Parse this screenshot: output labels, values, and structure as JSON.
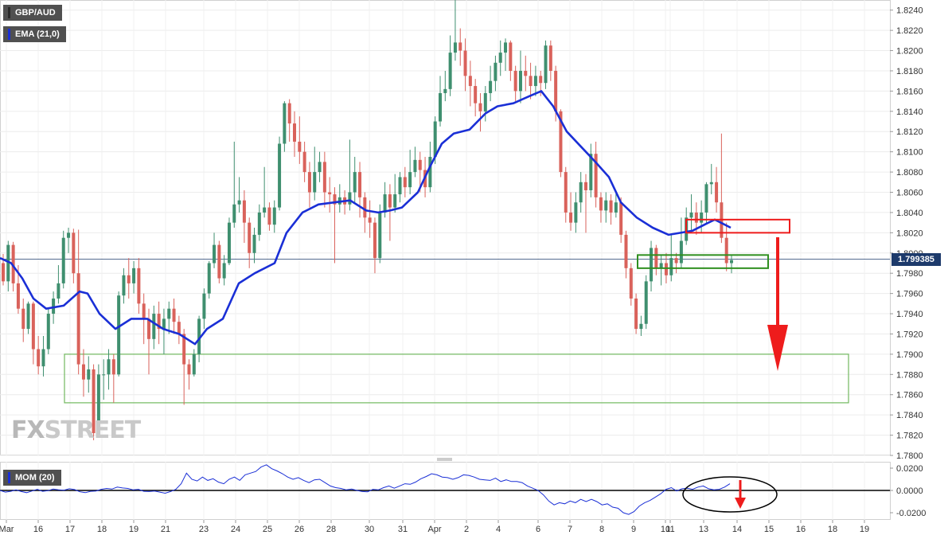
{
  "chart_data": [
    {
      "type": "candlestick",
      "title": "GBP/AUD",
      "indicator": "EMA (21,0)",
      "current_price": "1.799385",
      "ylim": [
        1.78,
        1.825
      ],
      "y_ticks": [
        "1.8240",
        "1.8220",
        "1.8200",
        "1.8180",
        "1.8160",
        "1.8140",
        "1.8120",
        "1.8100",
        "1.8080",
        "1.8060",
        "1.8040",
        "1.8020",
        "1.8000",
        "1.7980",
        "1.7960",
        "1.7940",
        "1.7920",
        "1.7900",
        "1.7880",
        "1.7860",
        "1.7840",
        "1.7820",
        "1.7800"
      ],
      "x_ticks": [
        "Mar",
        "16",
        "17",
        "18",
        "19",
        "21",
        "23",
        "24",
        "25",
        "26",
        "28",
        "30",
        "31",
        "Apr",
        "2",
        "4",
        "6",
        "7",
        "8",
        "9",
        "10",
        "11",
        "13",
        "14",
        "15",
        "16",
        "18",
        "19"
      ],
      "ema_points": [
        [
          0,
          1.7995
        ],
        [
          14,
          1.799
        ],
        [
          28,
          1.7975
        ],
        [
          42,
          1.7955
        ],
        [
          58,
          1.7945
        ],
        [
          80,
          1.7948
        ],
        [
          100,
          1.7962
        ],
        [
          110,
          1.796
        ],
        [
          125,
          1.794
        ],
        [
          145,
          1.7925
        ],
        [
          165,
          1.7935
        ],
        [
          185,
          1.7935
        ],
        [
          205,
          1.7925
        ],
        [
          225,
          1.792
        ],
        [
          245,
          1.791
        ],
        [
          260,
          1.7925
        ],
        [
          280,
          1.7935
        ],
        [
          300,
          1.797
        ],
        [
          320,
          1.798
        ],
        [
          345,
          1.799
        ],
        [
          360,
          1.802
        ],
        [
          380,
          1.804
        ],
        [
          400,
          1.8048
        ],
        [
          420,
          1.805
        ],
        [
          440,
          1.8052
        ],
        [
          460,
          1.8042
        ],
        [
          475,
          1.804
        ],
        [
          490,
          1.8042
        ],
        [
          505,
          1.8045
        ],
        [
          525,
          1.806
        ],
        [
          540,
          1.8085
        ],
        [
          555,
          1.8108
        ],
        [
          570,
          1.8118
        ],
        [
          590,
          1.8122
        ],
        [
          610,
          1.8138
        ],
        [
          625,
          1.8145
        ],
        [
          645,
          1.8148
        ],
        [
          665,
          1.8155
        ],
        [
          680,
          1.816
        ],
        [
          695,
          1.8145
        ],
        [
          712,
          1.812
        ],
        [
          730,
          1.8105
        ],
        [
          748,
          1.809
        ],
        [
          765,
          1.8075
        ],
        [
          780,
          1.805
        ],
        [
          800,
          1.8035
        ],
        [
          820,
          1.8025
        ],
        [
          840,
          1.8018
        ],
        [
          855,
          1.802
        ],
        [
          870,
          1.8022
        ],
        [
          885,
          1.8028
        ],
        [
          898,
          1.8033
        ],
        [
          918,
          1.8025
        ]
      ],
      "candles": [
        [
          1.799,
          1.7972,
          1.7999,
          1.7968
        ],
        [
          1.7972,
          1.8008,
          1.8012,
          1.7962
        ],
        [
          1.8008,
          1.797,
          1.8011,
          1.7962
        ],
        [
          1.797,
          1.7945,
          1.7988,
          1.794
        ],
        [
          1.7945,
          1.7925,
          1.7955,
          1.7912
        ],
        [
          1.7925,
          1.795,
          1.7952,
          1.792
        ],
        [
          1.795,
          1.7905,
          1.7952,
          1.789
        ],
        [
          1.7905,
          1.7888,
          1.7918,
          1.788
        ],
        [
          1.7888,
          1.7905,
          1.7918,
          1.7878
        ],
        [
          1.7905,
          1.794,
          1.7945,
          1.79
        ],
        [
          1.794,
          1.7955,
          1.7962,
          1.793
        ],
        [
          1.7955,
          1.797,
          1.7988,
          1.795
        ],
        [
          1.797,
          1.8015,
          1.8022,
          1.7965
        ],
        [
          1.8015,
          1.802,
          1.8025,
          1.8
        ],
        [
          1.802,
          1.798,
          1.8024,
          1.797
        ],
        [
          1.798,
          1.789,
          1.8023,
          1.788
        ],
        [
          1.789,
          1.7875,
          1.7905,
          1.7858
        ],
        [
          1.7875,
          1.7885,
          1.7898,
          1.7862
        ],
        [
          1.7885,
          1.7822,
          1.789,
          1.7815
        ],
        [
          1.7822,
          1.788,
          1.789,
          1.7818
        ],
        [
          1.788,
          1.788,
          1.7895,
          1.7855
        ],
        [
          1.788,
          1.7895,
          1.7905,
          1.7865
        ],
        [
          1.7895,
          1.788,
          1.79,
          1.7852
        ],
        [
          1.788,
          1.7958,
          1.7962,
          1.7878
        ],
        [
          1.7958,
          1.7978,
          1.7985,
          1.795
        ],
        [
          1.7978,
          1.797,
          1.7995,
          1.7955
        ],
        [
          1.797,
          1.7985,
          1.7992,
          1.796
        ],
        [
          1.7985,
          1.795,
          1.7995,
          1.794
        ],
        [
          1.795,
          1.7935,
          1.796,
          1.791
        ],
        [
          1.7935,
          1.7915,
          1.7945,
          1.788
        ],
        [
          1.7915,
          1.794,
          1.7948,
          1.7905
        ],
        [
          1.794,
          1.7925,
          1.7952,
          1.791
        ],
        [
          1.7925,
          1.7935,
          1.7945,
          1.79
        ],
        [
          1.7935,
          1.7945,
          1.7952,
          1.792
        ],
        [
          1.7945,
          1.7932,
          1.7955,
          1.792
        ],
        [
          1.7932,
          1.792,
          1.7938,
          1.791
        ],
        [
          1.792,
          1.789,
          1.7925,
          1.785
        ],
        [
          1.789,
          1.788,
          1.7895,
          1.7865
        ],
        [
          1.788,
          1.79,
          1.7905,
          1.7878
        ],
        [
          1.79,
          1.7935,
          1.7938,
          1.7892
        ],
        [
          1.7935,
          1.796,
          1.7965,
          1.7925
        ],
        [
          1.796,
          1.799,
          1.7992,
          1.7955
        ],
        [
          1.799,
          1.8008,
          1.802,
          1.7985
        ],
        [
          1.8008,
          1.7975,
          1.8012,
          1.797
        ],
        [
          1.7975,
          1.799,
          1.7998,
          1.7968
        ],
        [
          1.799,
          1.803,
          1.8035,
          1.7988
        ],
        [
          1.803,
          1.8048,
          1.811,
          1.8025
        ],
        [
          1.8048,
          1.8052,
          1.8075,
          1.804
        ],
        [
          1.8052,
          1.803,
          1.8062,
          1.801
        ],
        [
          1.803,
          1.8,
          1.8035,
          1.7985
        ],
        [
          1.8,
          1.8018,
          1.8025,
          1.799
        ],
        [
          1.8018,
          1.804,
          1.8048,
          1.8012
        ],
        [
          1.804,
          1.8045,
          1.8085,
          1.8035
        ],
        [
          1.8045,
          1.8028,
          1.805,
          1.8022
        ],
        [
          1.8028,
          1.8045,
          1.8052,
          1.802
        ],
        [
          1.8045,
          1.8108,
          1.8115,
          1.8042
        ],
        [
          1.8108,
          1.8148,
          1.815,
          1.81
        ],
        [
          1.8148,
          1.8128,
          1.8152,
          1.811
        ],
        [
          1.8128,
          1.811,
          1.814,
          1.8095
        ],
        [
          1.811,
          1.81,
          1.8135,
          1.8088
        ],
        [
          1.81,
          1.808,
          1.811,
          1.807
        ],
        [
          1.808,
          1.806,
          1.809,
          1.8045
        ],
        [
          1.806,
          1.808,
          1.8105,
          1.8052
        ],
        [
          1.808,
          1.809,
          1.81,
          1.807
        ],
        [
          1.809,
          1.806,
          1.81,
          1.8045
        ],
        [
          1.806,
          1.8058,
          1.8075,
          1.804
        ],
        [
          1.8058,
          1.8048,
          1.8065,
          1.799
        ],
        [
          1.8048,
          1.8055,
          1.8068,
          1.804
        ],
        [
          1.8055,
          1.8048,
          1.8062,
          1.8038
        ],
        [
          1.8048,
          1.806,
          1.8112,
          1.8042
        ],
        [
          1.806,
          1.808,
          1.8095,
          1.805
        ],
        [
          1.808,
          1.8055,
          1.809,
          1.8035
        ],
        [
          1.8055,
          1.8035,
          1.806,
          1.802
        ],
        [
          1.8035,
          1.803,
          1.8052,
          1.8015
        ],
        [
          1.803,
          1.7995,
          1.8035,
          1.798
        ],
        [
          1.7995,
          1.804,
          1.8048,
          1.799
        ],
        [
          1.804,
          1.8058,
          1.807,
          1.8035
        ],
        [
          1.8058,
          1.8045,
          1.8068,
          1.8012
        ],
        [
          1.8045,
          1.8058,
          1.8078,
          1.804
        ],
        [
          1.8058,
          1.8075,
          1.808,
          1.805
        ],
        [
          1.8075,
          1.8065,
          1.8085,
          1.8055
        ],
        [
          1.8065,
          1.808,
          1.8102,
          1.8058
        ],
        [
          1.808,
          1.8092,
          1.8105,
          1.8075
        ],
        [
          1.8092,
          1.8082,
          1.81,
          1.806
        ],
        [
          1.8082,
          1.8065,
          1.8095,
          1.8055
        ],
        [
          1.8065,
          1.8095,
          1.811,
          1.806
        ],
        [
          1.8095,
          1.813,
          1.8135,
          1.8088
        ],
        [
          1.813,
          1.8158,
          1.8175,
          1.8125
        ],
        [
          1.8158,
          1.8162,
          1.818,
          1.815
        ],
        [
          1.8162,
          1.8198,
          1.8215,
          1.8155
        ],
        [
          1.8198,
          1.8208,
          1.8255,
          1.819
        ],
        [
          1.8208,
          1.82,
          1.8222,
          1.8185
        ],
        [
          1.82,
          1.8175,
          1.8212,
          1.816
        ],
        [
          1.8175,
          1.8165,
          1.819,
          1.8145
        ],
        [
          1.8165,
          1.8148,
          1.8172,
          1.8135
        ],
        [
          1.8148,
          1.814,
          1.8158,
          1.812
        ],
        [
          1.814,
          1.8158,
          1.8165,
          1.813
        ],
        [
          1.8158,
          1.817,
          1.8185,
          1.815
        ],
        [
          1.817,
          1.8188,
          1.8195,
          1.816
        ],
        [
          1.8188,
          1.8198,
          1.821,
          1.8175
        ],
        [
          1.8198,
          1.8208,
          1.8212,
          1.818
        ],
        [
          1.8208,
          1.818,
          1.821,
          1.817
        ],
        [
          1.818,
          1.816,
          1.8185,
          1.815
        ],
        [
          1.816,
          1.818,
          1.82,
          1.8148
        ],
        [
          1.818,
          1.8175,
          1.8195,
          1.816
        ],
        [
          1.8175,
          1.8165,
          1.8188,
          1.8152
        ],
        [
          1.8165,
          1.8175,
          1.8185,
          1.8155
        ],
        [
          1.8175,
          1.8168,
          1.818,
          1.8155
        ],
        [
          1.8168,
          1.8205,
          1.821,
          1.8162
        ],
        [
          1.8205,
          1.818,
          1.821,
          1.817
        ],
        [
          1.818,
          1.814,
          1.8185,
          1.813
        ],
        [
          1.814,
          1.808,
          1.8142,
          1.8075
        ],
        [
          1.808,
          1.804,
          1.8085,
          1.803
        ],
        [
          1.804,
          1.803,
          1.806,
          1.8022
        ],
        [
          1.803,
          1.805,
          1.806,
          1.802
        ],
        [
          1.805,
          1.807,
          1.808,
          1.804
        ],
        [
          1.807,
          1.8062,
          1.8078,
          1.802
        ],
        [
          1.8062,
          1.8098,
          1.8108,
          1.8055
        ],
        [
          1.8098,
          1.8055,
          1.811,
          1.8045
        ],
        [
          1.8055,
          1.8042,
          1.806,
          1.803
        ],
        [
          1.8042,
          1.8052,
          1.806,
          1.803
        ],
        [
          1.8052,
          1.804,
          1.8058,
          1.8028
        ],
        [
          1.804,
          1.805,
          1.806,
          1.8035
        ],
        [
          1.805,
          1.8018,
          1.8055,
          1.801
        ],
        [
          1.8018,
          1.7985,
          1.8022,
          1.7975
        ],
        [
          1.7985,
          1.7955,
          1.799,
          1.7948
        ],
        [
          1.7955,
          1.7925,
          1.796,
          1.792
        ],
        [
          1.7925,
          1.793,
          1.7938,
          1.7918
        ],
        [
          1.793,
          1.7972,
          1.7978,
          1.7925
        ],
        [
          1.7972,
          1.8005,
          1.8012,
          1.7962
        ],
        [
          1.8005,
          1.7985,
          1.8008,
          1.7978
        ],
        [
          1.7985,
          1.799,
          1.7998,
          1.7968
        ],
        [
          1.799,
          1.7978,
          1.8,
          1.797
        ],
        [
          1.7978,
          1.7995,
          1.8018,
          1.7972
        ],
        [
          1.7995,
          1.799,
          1.8,
          1.798
        ],
        [
          1.799,
          1.8012,
          1.8035,
          1.7985
        ],
        [
          1.8012,
          1.8035,
          1.8045,
          1.8008
        ],
        [
          1.8035,
          1.804,
          1.8058,
          1.802
        ],
        [
          1.804,
          1.803,
          1.805,
          1.8018
        ],
        [
          1.803,
          1.804,
          1.8052,
          1.802
        ],
        [
          1.804,
          1.8068,
          1.807,
          1.803
        ],
        [
          1.8068,
          1.807,
          1.8088,
          1.8058
        ],
        [
          1.807,
          1.805,
          1.8085,
          1.804
        ],
        [
          1.805,
          1.8015,
          1.8118,
          1.801
        ],
        [
          1.8015,
          1.799,
          1.803,
          1.7982
        ],
        [
          1.799,
          1.7993,
          1.7998,
          1.798
        ]
      ],
      "annotations": {
        "support_zone": [
          1.79,
          1.7852
        ],
        "resistance_box": [
          1.8033,
          1.802
        ],
        "support_box": [
          1.7998,
          1.7985
        ]
      }
    },
    {
      "type": "line",
      "title": "MOM (20)",
      "ylim": [
        -0.023,
        0.023
      ],
      "y_ticks": [
        "0.0200",
        "0.0000",
        "-0.0200"
      ],
      "values": [
        0.0,
        -0.0015,
        -0.0008,
        0.0005,
        -0.001,
        -0.002,
        -0.0005,
        0.001,
        -0.0008,
        -0.0002,
        0.0012,
        0.0005,
        0.0002,
        0.0015,
        0.0008,
        -0.0012,
        -0.002,
        -0.0008,
        -0.0005,
        0.001,
        0.0018,
        0.0012,
        0.003,
        0.0022,
        0.0018,
        0.0005,
        0.001,
        -0.0008,
        -0.001,
        -0.0005,
        -0.0015,
        -0.0025,
        -0.001,
        0.001,
        0.006,
        0.0155,
        0.01,
        0.0085,
        0.012,
        0.009,
        0.0105,
        0.0075,
        0.006,
        0.01,
        0.012,
        0.009,
        0.014,
        0.0155,
        0.017,
        0.021,
        0.023,
        0.0195,
        0.0175,
        0.015,
        0.012,
        0.01,
        0.0115,
        0.009,
        0.007,
        0.0095,
        0.01,
        0.007,
        0.004,
        0.0025,
        0.0018,
        0.0005,
        0.0012,
        0.0,
        -0.001,
        -0.0012,
        0.001,
        0.0005,
        0.0025,
        0.004,
        0.002,
        0.004,
        0.006,
        0.0055,
        0.0075,
        0.0105,
        0.0125,
        0.015,
        0.014,
        0.012,
        0.0115,
        0.01,
        0.0115,
        0.014,
        0.0135,
        0.012,
        0.01,
        0.0095,
        0.009,
        0.011,
        0.008,
        0.0095,
        0.008,
        0.008,
        0.007,
        0.004,
        0.002,
        0.0,
        -0.004,
        -0.0095,
        -0.013,
        -0.011,
        -0.012,
        -0.0095,
        -0.011,
        -0.008,
        -0.01,
        -0.008,
        -0.01,
        -0.013,
        -0.012,
        -0.015,
        -0.016,
        -0.02,
        -0.0215,
        -0.019,
        -0.014,
        -0.011,
        -0.009,
        -0.006,
        -0.003,
        0.001,
        0.0025,
        -0.0005,
        0.0015,
        0.002,
        0.001,
        0.003,
        0.004,
        0.0015,
        0.0005,
        0.001,
        0.003,
        0.006
      ]
    }
  ]
}
